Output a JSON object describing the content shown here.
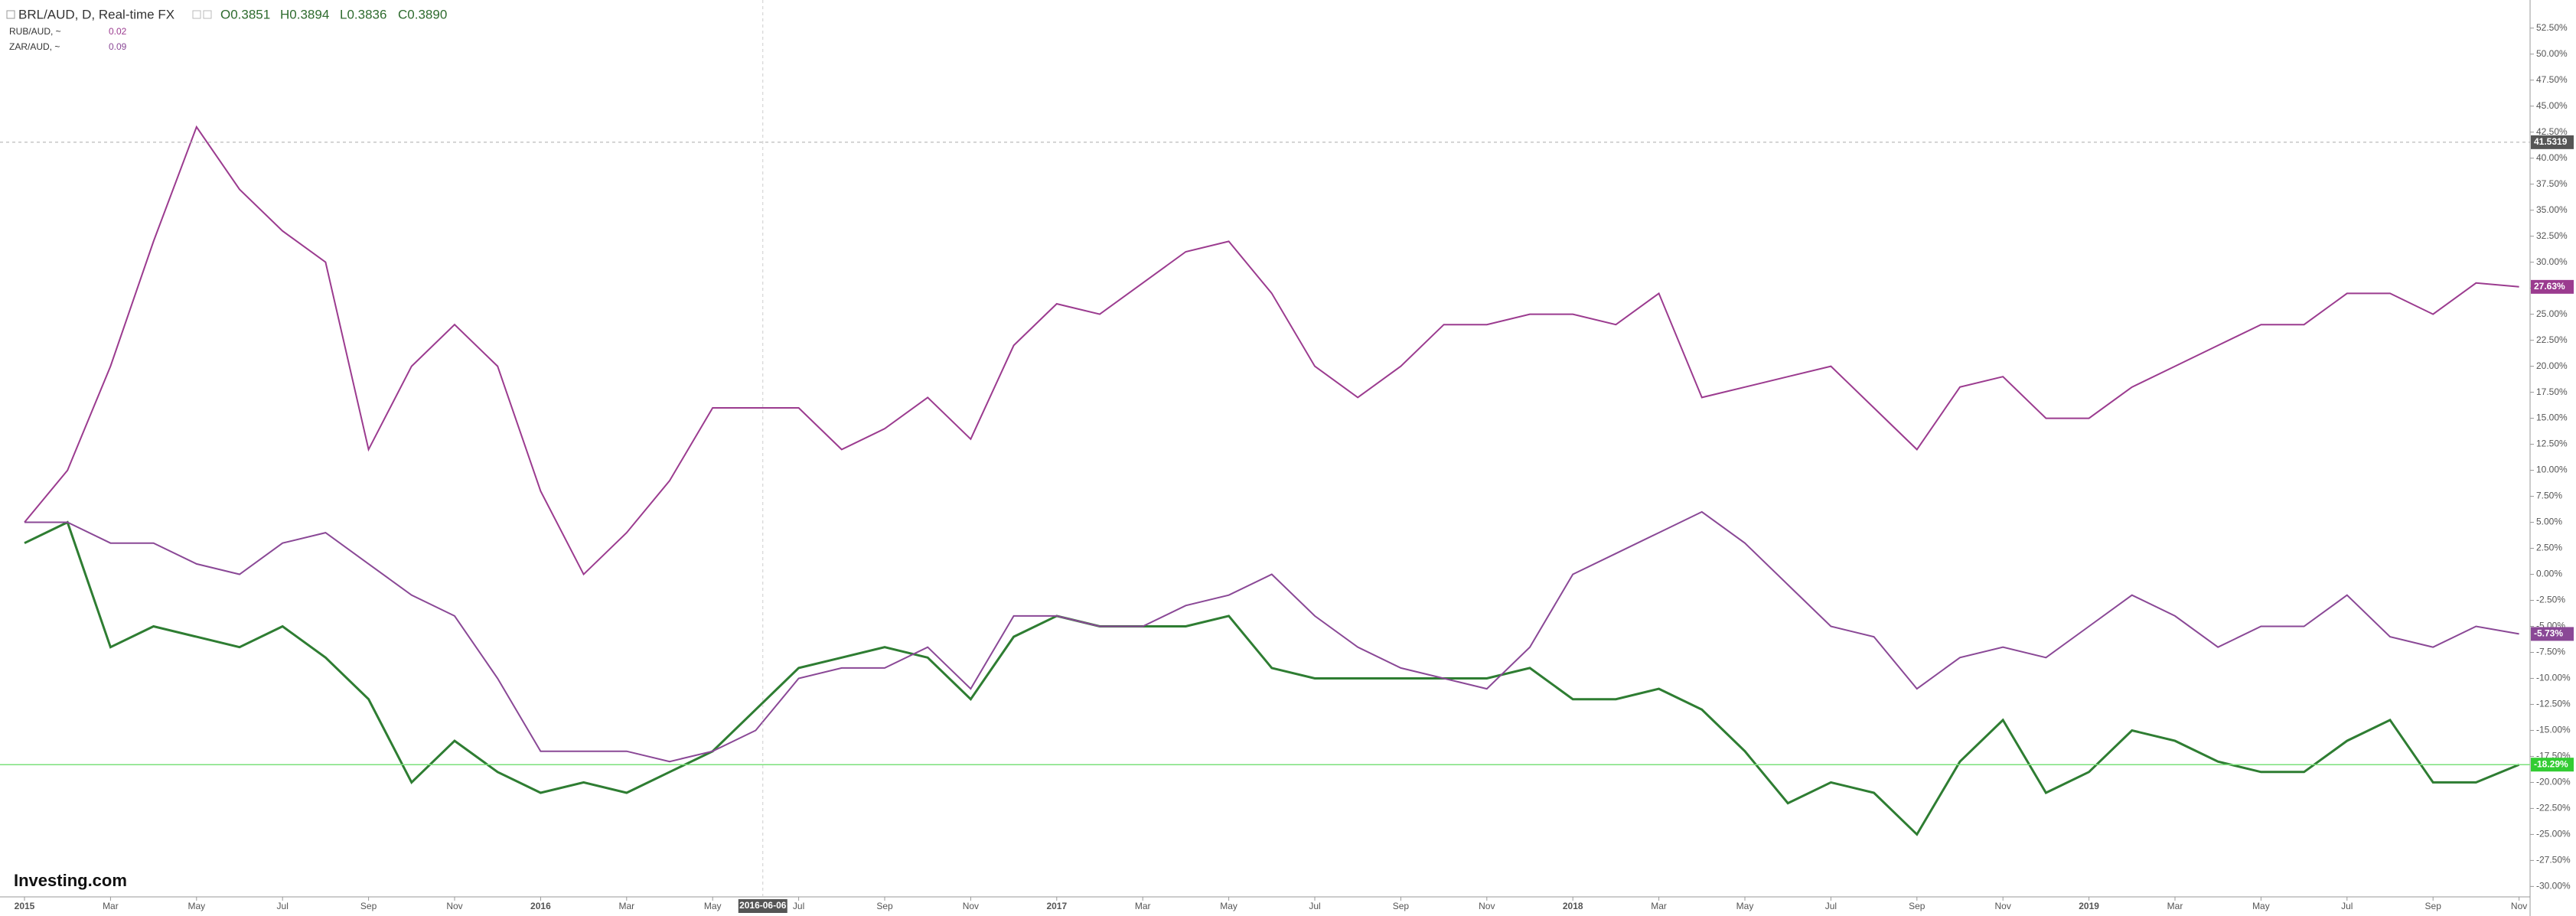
{
  "chart_data": {
    "type": "line",
    "series": [
      {
        "name": "BRL/AUD, D, Real-time FX",
        "ohlc": [
          "O0.3851",
          "H0.3894",
          "L0.3836",
          "C0.3890"
        ],
        "color": "#2e7d32",
        "last_label": "-18.29%",
        "values": [
          3,
          5,
          -7,
          -5,
          -6,
          -7,
          -5,
          -8,
          -12,
          -20,
          -16,
          -19,
          -21,
          -20,
          -21,
          -19,
          -17,
          -13,
          -9,
          -8,
          -7,
          -8,
          -12,
          -6,
          -4,
          -5,
          -5,
          -5,
          -4,
          -9,
          -10,
          -10,
          -10,
          -10,
          -10,
          -9,
          -12,
          -12,
          -11,
          -13,
          -17,
          -22,
          -20,
          -21,
          -25,
          -18,
          -14,
          -21,
          -19,
          -15,
          -16,
          -18,
          -19,
          -19,
          -16,
          -14,
          -20,
          -20,
          -18.29
        ]
      },
      {
        "name": "RUB/AUD, ~",
        "legend_value": 0.02,
        "color": "#9b3b8f",
        "last_label": "27.63%",
        "values": [
          5,
          10,
          20,
          32,
          43,
          37,
          33,
          30,
          12,
          20,
          24,
          20,
          8,
          0,
          4,
          9,
          16,
          16,
          16,
          12,
          14,
          17,
          13,
          22,
          26,
          25,
          28,
          31,
          32,
          27,
          20,
          17,
          20,
          24,
          24,
          25,
          25,
          24,
          27,
          17,
          18,
          19,
          20,
          16,
          12,
          18,
          19,
          15,
          15,
          18,
          20,
          22,
          24,
          24,
          27,
          27,
          25,
          28,
          27.63
        ]
      },
      {
        "name": "ZAR/AUD, ~",
        "legend_value": 0.09,
        "color": "#8a4896",
        "last_label": "-5.73%",
        "values": [
          5,
          5,
          3,
          3,
          1,
          0,
          3,
          4,
          1,
          -2,
          -4,
          -10,
          -17,
          -17,
          -17,
          -18,
          -17,
          -15,
          -10,
          -9,
          -9,
          -7,
          -11,
          -4,
          -4,
          -5,
          -5,
          -3,
          -2,
          0,
          -4,
          -7,
          -9,
          -10,
          -11,
          -7,
          0,
          2,
          4,
          6,
          3,
          -1,
          -5,
          -6,
          -11,
          -8,
          -7,
          -8,
          -5,
          -2,
          -4,
          -7,
          -5,
          -5,
          -2,
          -6,
          -7,
          -5,
          -5.73
        ]
      }
    ],
    "categories": [
      "2015",
      null,
      "Mar",
      null,
      "May",
      null,
      "Jul",
      null,
      "Sep",
      null,
      "Nov",
      null,
      "2016",
      null,
      "Mar",
      null,
      "May",
      null,
      "Jul",
      null,
      "Sep",
      null,
      "Nov",
      null,
      "2017",
      null,
      "Mar",
      null,
      "May",
      null,
      "Jul",
      null,
      "Sep",
      null,
      "Nov",
      null,
      "2018",
      null,
      "Mar",
      null,
      "May",
      null,
      "Jul",
      null,
      "Sep",
      null,
      "Nov",
      null,
      "2019",
      null,
      "Mar",
      null,
      "May",
      null,
      "Jul",
      null,
      "Sep",
      null,
      "Nov"
    ],
    "ylim": [
      -31,
      55.2
    ],
    "yticks": [
      {
        "value": 52.5,
        "label": "52.50%"
      },
      {
        "value": 50,
        "label": "50.00%"
      },
      {
        "value": 47.5,
        "label": "47.50%"
      },
      {
        "value": 45,
        "label": "45.00%"
      },
      {
        "value": 42.5,
        "label": "42.50%"
      },
      {
        "value": 40,
        "label": "40.00%"
      },
      {
        "value": 37.5,
        "label": "37.50%"
      },
      {
        "value": 35,
        "label": "35.00%"
      },
      {
        "value": 32.5,
        "label": "32.50%"
      },
      {
        "value": 30,
        "label": "30.00%"
      },
      {
        "value": 27.5,
        "label": "27.50%"
      },
      {
        "value": 25,
        "label": "25.00%"
      },
      {
        "value": 22.5,
        "label": "22.50%"
      },
      {
        "value": 20,
        "label": "20.00%"
      },
      {
        "value": 17.5,
        "label": "17.50%"
      },
      {
        "value": 15,
        "label": "15.00%"
      },
      {
        "value": 12.5,
        "label": "12.50%"
      },
      {
        "value": 10,
        "label": "10.00%"
      },
      {
        "value": 7.5,
        "label": "7.50%"
      },
      {
        "value": 5,
        "label": "5.00%"
      },
      {
        "value": 2.5,
        "label": "2.50%"
      },
      {
        "value": 0,
        "label": "0.00%"
      },
      {
        "value": -2.5,
        "label": "-2.50%"
      },
      {
        "value": -5,
        "label": "-5.00%"
      },
      {
        "value": -7.5,
        "label": "-7.50%"
      },
      {
        "value": -10,
        "label": "-10.00%"
      },
      {
        "value": -12.5,
        "label": "-12.50%"
      },
      {
        "value": -15,
        "label": "-15.00%"
      },
      {
        "value": -17.5,
        "label": "-17.50%"
      },
      {
        "value": -20,
        "label": "-20.00%"
      },
      {
        "value": -22.5,
        "label": "-22.50%"
      },
      {
        "value": -25,
        "label": "-25.00%"
      },
      {
        "value": -27.5,
        "label": "-27.50%"
      },
      {
        "value": -30,
        "label": "-30.00%"
      }
    ],
    "crosshair": {
      "x_label": "2016-06-06",
      "y": 41.5319
    },
    "logo": "Investing.com"
  }
}
